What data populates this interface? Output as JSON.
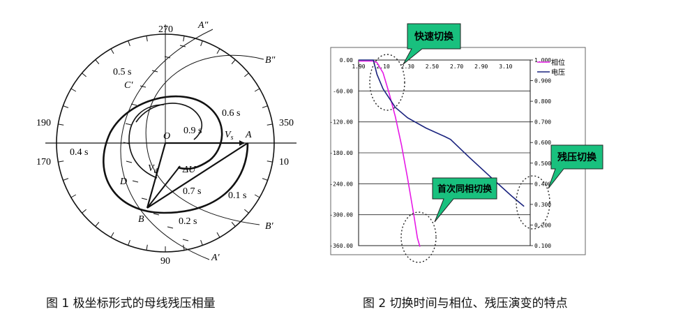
{
  "figure1": {
    "caption": "图 1  极坐标形式的母线残压相量",
    "angles": {
      "top": "270",
      "left_upper": "190",
      "left_lower": "170",
      "right_upper": "350",
      "right_lower": "10",
      "bottom": "90"
    },
    "time_labels": {
      "t05": "0.5 s",
      "t06": "0.6 s",
      "t09": "0.9 s",
      "t04": "0.4 s",
      "t07": "0.7 s",
      "t01": "0.1 s",
      "t02": "0.2 s"
    },
    "points": {
      "C": "C′",
      "O": "O",
      "A": "A",
      "D": "D",
      "B": "B"
    },
    "vectors": {
      "vs": "V",
      "vs_sub": "s",
      "vd": "V",
      "vd_sub": "d",
      "du": "ΔU"
    },
    "lines": {
      "A2": "A″",
      "B2": "B″",
      "B1": "B′",
      "A1": "A′"
    }
  },
  "figure2": {
    "caption": "图 2  切换时间与相位、残压演变的特点",
    "callouts": {
      "fast": "快速切换",
      "first": "首次同相切换",
      "residual": "残压切换"
    },
    "legend": {
      "phase": "相位",
      "voltage": "电压"
    },
    "colors": {
      "phase": "#e619e6",
      "voltage": "#1a237e",
      "callout_fill": "#19c07e"
    },
    "chart_data": {
      "type": "line",
      "x_ticks": [
        "1.90",
        "2.10",
        "2.30",
        "2.50",
        "2.70",
        "2.90",
        "3.10"
      ],
      "y_left_ticks": [
        "0.00",
        "-60.00",
        "-120.00",
        "-180.00",
        "-240.00",
        "-300.00",
        "-360.00"
      ],
      "y_right_ticks": [
        "1.000",
        "0.900",
        "0.800",
        "0.700",
        "0.600",
        "0.500",
        "0.400",
        "0.300",
        "0.200",
        "0.100"
      ],
      "xlim": [
        1.9,
        3.3
      ],
      "ylim_left": [
        -360,
        0
      ],
      "ylim_right": [
        0.1,
        1.0
      ],
      "grid": true,
      "legend_position": "top-right",
      "series": [
        {
          "name": "相位",
          "axis": "left",
          "x": [
            1.9,
            2.02,
            2.05,
            2.1,
            2.15,
            2.2,
            2.25,
            2.3,
            2.35,
            2.38,
            2.4
          ],
          "y": [
            -2,
            -2,
            -5,
            -25,
            -65,
            -110,
            -165,
            -230,
            -300,
            -345,
            -362
          ]
        },
        {
          "name": "电压",
          "axis": "right",
          "x": [
            1.9,
            2.02,
            2.05,
            2.1,
            2.2,
            2.3,
            2.45,
            2.6,
            2.65,
            2.8,
            3.0,
            3.15,
            3.25
          ],
          "y": [
            1.0,
            1.0,
            0.93,
            0.86,
            0.77,
            0.72,
            0.67,
            0.63,
            0.615,
            0.53,
            0.42,
            0.34,
            0.29
          ]
        }
      ]
    }
  }
}
